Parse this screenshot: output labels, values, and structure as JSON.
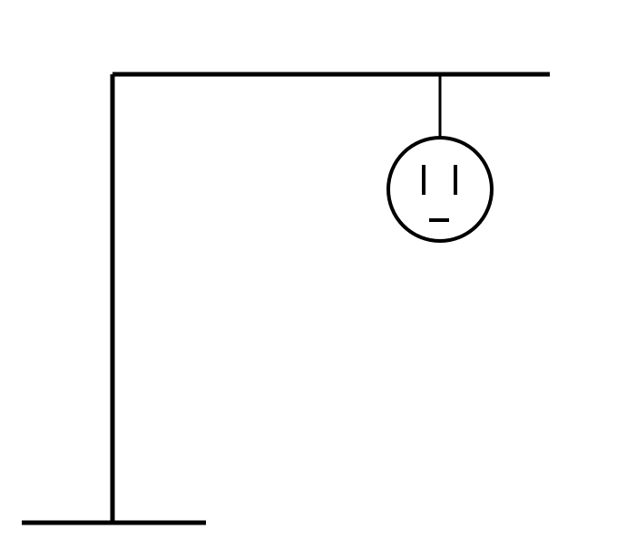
{
  "game": {
    "type": "hangman",
    "wrong_guesses": 1,
    "stroke_color": "#000000",
    "background_color": "#ffffff"
  }
}
